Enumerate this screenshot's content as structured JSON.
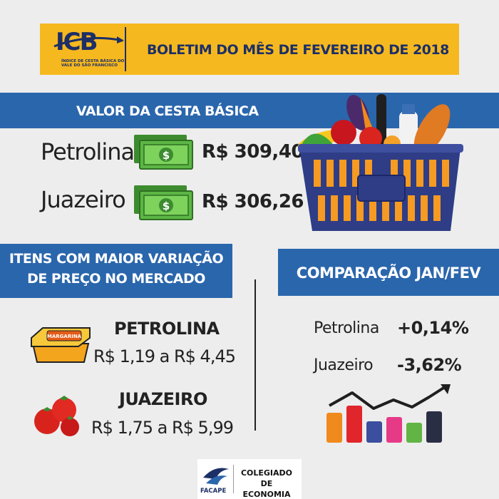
{
  "header": {
    "logo_text": "ICB",
    "logo_subtitle": "ÍNDICE DE CESTA BÁSICA DO VALE DO SÃO FRANCISCO",
    "title": "BOLETIM DO MÊS DE FEVEREIRO DE 2018"
  },
  "cesta": {
    "heading": "VALOR DA CESTA BÁSICA",
    "rows": [
      {
        "city": "Petrolina",
        "value": "R$ 309,40"
      },
      {
        "city": "Juazeiro",
        "value": "R$ 306,26"
      }
    ]
  },
  "itens": {
    "heading_line1": "ITENS COM MAIOR VARIAÇÃO",
    "heading_line2": "DE PREÇO NO MERCADO",
    "rows": [
      {
        "city": "PETROLINA",
        "range": "R$ 1,19 a R$ 4,45",
        "product_label": "MARGARINA"
      },
      {
        "city": "JUAZEIRO",
        "range": "R$ 1,75 a R$ 5,99"
      }
    ]
  },
  "comparacao": {
    "heading": "COMPARAÇÃO JAN/FEV",
    "rows": [
      {
        "city": "Petrolina",
        "value": "+0,14%"
      },
      {
        "city": "Juazeiro",
        "value": "-3,62%"
      }
    ]
  },
  "footer": {
    "logo_label": "FACAPE",
    "text_line1": "COLEGIADO DE",
    "text_line2": "ECONOMIA"
  },
  "colors": {
    "blue": "#2a66ac",
    "yellow": "#f6b81f",
    "navy": "#1c2f66"
  }
}
